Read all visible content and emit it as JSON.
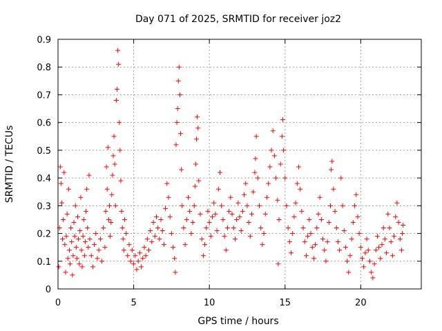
{
  "chart_data": {
    "type": "scatter",
    "title": "Day 071 of 2025, SRMTID for receiver joz2",
    "xlabel": "GPS time / hours",
    "ylabel": "SRMTID / TECUs",
    "xlim": [
      0,
      24
    ],
    "ylim": [
      0,
      0.9
    ],
    "xticks": [
      0,
      5,
      10,
      15,
      20
    ],
    "xtick_labels": [
      "0",
      "5",
      "10",
      "15",
      "20"
    ],
    "yticks": [
      0,
      0.1,
      0.2,
      0.3,
      0.4,
      0.5,
      0.6,
      0.7,
      0.8,
      0.9
    ],
    "ytick_labels": [
      "0",
      "0.1",
      "0.2",
      "0.3",
      "0.4",
      "0.5",
      "0.6",
      "0.7",
      "0.8",
      "0.9"
    ],
    "grid": true,
    "marker": "+",
    "color": "#ff0000",
    "series": [
      {
        "name": "SRMTID",
        "points": [
          [
            0.05,
            0.08
          ],
          [
            0.1,
            0.22
          ],
          [
            0.15,
            0.44
          ],
          [
            0.2,
            0.38
          ],
          [
            0.25,
            0.31
          ],
          [
            0.3,
            0.18
          ],
          [
            0.35,
            0.25
          ],
          [
            0.4,
            0.42
          ],
          [
            0.45,
            0.16
          ],
          [
            0.5,
            0.06
          ],
          [
            0.55,
            0.19
          ],
          [
            0.6,
            0.27
          ],
          [
            0.65,
            0.11
          ],
          [
            0.7,
            0.36
          ],
          [
            0.75,
            0.14
          ],
          [
            0.8,
            0.09
          ],
          [
            0.85,
            0.22
          ],
          [
            0.9,
            0.17
          ],
          [
            0.95,
            0.05
          ],
          [
            1.0,
            0.12
          ],
          [
            1.05,
            0.24
          ],
          [
            1.1,
            0.19
          ],
          [
            1.15,
            0.3
          ],
          [
            1.2,
            0.15
          ],
          [
            1.25,
            0.11
          ],
          [
            1.3,
            0.26
          ],
          [
            1.35,
            0.18
          ],
          [
            1.4,
            0.09
          ],
          [
            1.45,
            0.21
          ],
          [
            1.5,
            0.33
          ],
          [
            1.55,
            0.14
          ],
          [
            1.6,
            0.08
          ],
          [
            1.65,
            0.19
          ],
          [
            1.7,
            0.25
          ],
          [
            1.75,
            0.12
          ],
          [
            1.8,
            0.17
          ],
          [
            1.85,
            0.28
          ],
          [
            1.9,
            0.36
          ],
          [
            1.95,
            0.22
          ],
          [
            2.0,
            0.15
          ],
          [
            2.05,
            0.41
          ],
          [
            2.1,
            0.18
          ],
          [
            2.2,
            0.12
          ],
          [
            2.3,
            0.08
          ],
          [
            2.4,
            0.16
          ],
          [
            2.5,
            0.2
          ],
          [
            2.6,
            0.11
          ],
          [
            2.7,
            0.14
          ],
          [
            2.8,
            0.18
          ],
          [
            2.9,
            0.1
          ],
          [
            3.0,
            0.22
          ],
          [
            3.1,
            0.15
          ],
          [
            3.15,
            0.28
          ],
          [
            3.2,
            0.44
          ],
          [
            3.25,
            0.36
          ],
          [
            3.3,
            0.51
          ],
          [
            3.35,
            0.25
          ],
          [
            3.4,
            0.3
          ],
          [
            3.45,
            0.19
          ],
          [
            3.5,
            0.24
          ],
          [
            3.55,
            0.34
          ],
          [
            3.6,
            0.41
          ],
          [
            3.65,
            0.48
          ],
          [
            3.7,
            0.55
          ],
          [
            3.75,
            0.45
          ],
          [
            3.8,
            0.3
          ],
          [
            3.85,
            0.68
          ],
          [
            3.9,
            0.72
          ],
          [
            3.95,
            0.86
          ],
          [
            4.0,
            0.81
          ],
          [
            4.05,
            0.6
          ],
          [
            4.1,
            0.5
          ],
          [
            4.15,
            0.39
          ],
          [
            4.2,
            0.28
          ],
          [
            4.25,
            0.22
          ],
          [
            4.3,
            0.18
          ],
          [
            4.35,
            0.14
          ],
          [
            4.4,
            0.25
          ],
          [
            4.5,
            0.2
          ],
          [
            4.6,
            0.12
          ],
          [
            4.7,
            0.16
          ],
          [
            4.8,
            0.1
          ],
          [
            4.9,
            0.14
          ],
          [
            5.0,
            0.09
          ],
          [
            5.1,
            0.12
          ],
          [
            5.2,
            0.07
          ],
          [
            5.3,
            0.1
          ],
          [
            5.4,
            0.13
          ],
          [
            5.5,
            0.08
          ],
          [
            5.6,
            0.11
          ],
          [
            5.7,
            0.15
          ],
          [
            5.8,
            0.12
          ],
          [
            5.9,
            0.18
          ],
          [
            6.0,
            0.14
          ],
          [
            6.1,
            0.21
          ],
          [
            6.2,
            0.17
          ],
          [
            6.3,
            0.24
          ],
          [
            6.4,
            0.19
          ],
          [
            6.5,
            0.26
          ],
          [
            6.6,
            0.22
          ],
          [
            6.7,
            0.18
          ],
          [
            6.8,
            0.25
          ],
          [
            6.9,
            0.21
          ],
          [
            7.0,
            0.16
          ],
          [
            7.1,
            0.29
          ],
          [
            7.2,
            0.38
          ],
          [
            7.3,
            0.33
          ],
          [
            7.4,
            0.26
          ],
          [
            7.5,
            0.2
          ],
          [
            7.6,
            0.15
          ],
          [
            7.7,
            0.11
          ],
          [
            7.75,
            0.06
          ],
          [
            7.8,
            0.52
          ],
          [
            7.85,
            0.6
          ],
          [
            7.9,
            0.65
          ],
          [
            7.95,
            0.75
          ],
          [
            8.0,
            0.8
          ],
          [
            8.05,
            0.7
          ],
          [
            8.1,
            0.56
          ],
          [
            8.15,
            0.43
          ],
          [
            8.2,
            0.3
          ],
          [
            8.3,
            0.22
          ],
          [
            8.4,
            0.16
          ],
          [
            8.5,
            0.25
          ],
          [
            8.6,
            0.33
          ],
          [
            8.7,
            0.28
          ],
          [
            8.8,
            0.2
          ],
          [
            8.9,
            0.24
          ],
          [
            9.0,
            0.3
          ],
          [
            9.05,
            0.37
          ],
          [
            9.1,
            0.45
          ],
          [
            9.15,
            0.54
          ],
          [
            9.2,
            0.62
          ],
          [
            9.25,
            0.58
          ],
          [
            9.3,
            0.39
          ],
          [
            9.4,
            0.27
          ],
          [
            9.5,
            0.18
          ],
          [
            9.6,
            0.12
          ],
          [
            9.7,
            0.16
          ],
          [
            9.8,
            0.22
          ],
          [
            9.9,
            0.28
          ],
          [
            10.0,
            0.24
          ],
          [
            10.1,
            0.19
          ],
          [
            10.2,
            0.26
          ],
          [
            10.3,
            0.31
          ],
          [
            10.4,
            0.27
          ],
          [
            10.5,
            0.21
          ],
          [
            10.6,
            0.36
          ],
          [
            10.7,
            0.42
          ],
          [
            10.8,
            0.3
          ],
          [
            10.9,
            0.25
          ],
          [
            11.0,
            0.19
          ],
          [
            11.1,
            0.14
          ],
          [
            11.2,
            0.22
          ],
          [
            11.3,
            0.28
          ],
          [
            11.4,
            0.33
          ],
          [
            11.5,
            0.27
          ],
          [
            11.6,
            0.22
          ],
          [
            11.7,
            0.18
          ],
          [
            11.8,
            0.25
          ],
          [
            11.9,
            0.31
          ],
          [
            12.0,
            0.26
          ],
          [
            12.1,
            0.21
          ],
          [
            12.2,
            0.28
          ],
          [
            12.3,
            0.34
          ],
          [
            12.4,
            0.38
          ],
          [
            12.5,
            0.3
          ],
          [
            12.6,
            0.24
          ],
          [
            12.7,
            0.19
          ],
          [
            12.8,
            0.27
          ],
          [
            12.9,
            0.35
          ],
          [
            13.0,
            0.42
          ],
          [
            13.05,
            0.47
          ],
          [
            13.1,
            0.55
          ],
          [
            13.2,
            0.4
          ],
          [
            13.3,
            0.3
          ],
          [
            13.4,
            0.22
          ],
          [
            13.5,
            0.16
          ],
          [
            13.6,
            0.2
          ],
          [
            13.7,
            0.27
          ],
          [
            13.8,
            0.33
          ],
          [
            13.9,
            0.38
          ],
          [
            14.0,
            0.44
          ],
          [
            14.1,
            0.5
          ],
          [
            14.2,
            0.57
          ],
          [
            14.3,
            0.48
          ],
          [
            14.4,
            0.4
          ],
          [
            14.5,
            0.32
          ],
          [
            14.55,
            0.09
          ],
          [
            14.6,
            0.25
          ],
          [
            14.7,
            0.45
          ],
          [
            14.8,
            0.55
          ],
          [
            14.85,
            0.61
          ],
          [
            14.9,
            0.5
          ],
          [
            15.0,
            0.4
          ],
          [
            15.1,
            0.3
          ],
          [
            15.2,
            0.22
          ],
          [
            15.3,
            0.17
          ],
          [
            15.4,
            0.13
          ],
          [
            15.5,
            0.2
          ],
          [
            15.6,
            0.26
          ],
          [
            15.7,
            0.31
          ],
          [
            15.8,
            0.38
          ],
          [
            15.9,
            0.44
          ],
          [
            16.0,
            0.36
          ],
          [
            16.1,
            0.28
          ],
          [
            16.2,
            0.22
          ],
          [
            16.3,
            0.17
          ],
          [
            16.4,
            0.12
          ],
          [
            16.5,
            0.19
          ],
          [
            16.6,
            0.25
          ],
          [
            16.7,
            0.2
          ],
          [
            16.8,
            0.15
          ],
          [
            16.9,
            0.11
          ],
          [
            17.0,
            0.16
          ],
          [
            17.1,
            0.22
          ],
          [
            17.2,
            0.27
          ],
          [
            17.3,
            0.33
          ],
          [
            17.4,
            0.25
          ],
          [
            17.5,
            0.18
          ],
          [
            17.6,
            0.14
          ],
          [
            17.7,
            0.1
          ],
          [
            17.8,
            0.17
          ],
          [
            17.9,
            0.24
          ],
          [
            18.0,
            0.3
          ],
          [
            18.05,
            0.43
          ],
          [
            18.1,
            0.46
          ],
          [
            18.2,
            0.36
          ],
          [
            18.3,
            0.28
          ],
          [
            18.4,
            0.22
          ],
          [
            18.5,
            0.17
          ],
          [
            18.6,
            0.14
          ],
          [
            18.7,
            0.4
          ],
          [
            18.8,
            0.3
          ],
          [
            18.9,
            0.21
          ],
          [
            19.0,
            0.15
          ],
          [
            19.1,
            0.1
          ],
          [
            19.2,
            0.06
          ],
          [
            19.3,
            0.12
          ],
          [
            19.4,
            0.18
          ],
          [
            19.5,
            0.24
          ],
          [
            19.6,
            0.3
          ],
          [
            19.7,
            0.34
          ],
          [
            19.8,
            0.26
          ],
          [
            19.9,
            0.2
          ],
          [
            20.0,
            0.15
          ],
          [
            20.1,
            0.11
          ],
          [
            20.2,
            0.08
          ],
          [
            20.3,
            0.13
          ],
          [
            20.4,
            0.18
          ],
          [
            20.5,
            0.14
          ],
          [
            20.6,
            0.1
          ],
          [
            20.7,
            0.06
          ],
          [
            20.8,
            0.04
          ],
          [
            20.9,
            0.09
          ],
          [
            21.0,
            0.14
          ],
          [
            21.1,
            0.19
          ],
          [
            21.2,
            0.15
          ],
          [
            21.3,
            0.11
          ],
          [
            21.4,
            0.16
          ],
          [
            21.5,
            0.22
          ],
          [
            21.6,
            0.18
          ],
          [
            21.7,
            0.13
          ],
          [
            21.8,
            0.27
          ],
          [
            21.9,
            0.22
          ],
          [
            22.0,
            0.17
          ],
          [
            22.1,
            0.12
          ],
          [
            22.2,
            0.19
          ],
          [
            22.3,
            0.26
          ],
          [
            22.4,
            0.31
          ],
          [
            22.5,
            0.24
          ],
          [
            22.6,
            0.18
          ],
          [
            22.7,
            0.14
          ],
          [
            22.75,
            0.2
          ],
          [
            22.8,
            0.23
          ]
        ]
      }
    ]
  }
}
